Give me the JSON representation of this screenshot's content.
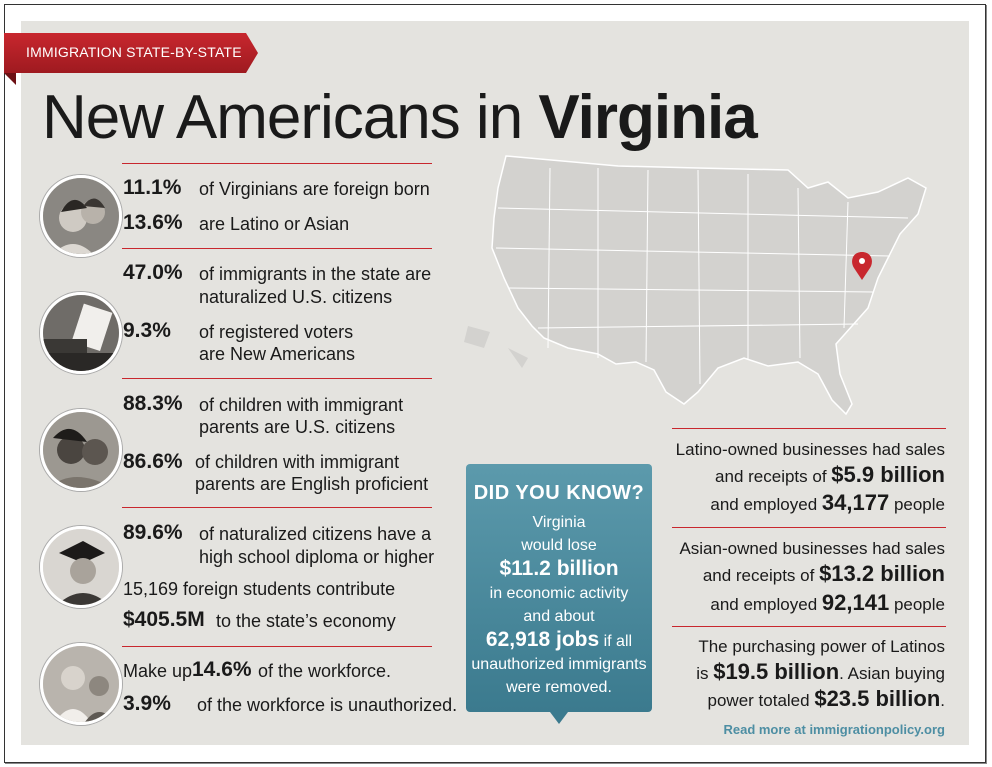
{
  "header": {
    "banner": "IMMIGRATION STATE-BY-STATE",
    "title_light": "New Americans in",
    "title_bold": "Virginia"
  },
  "stats": {
    "foreign_born_pct": "11.1%",
    "foreign_born_text": "of Virginians are foreign born",
    "latino_asian_pct": "13.6%",
    "latino_asian_text": "are Latino or Asian",
    "naturalized_pct": "47.0%",
    "naturalized_text_1": "of immigrants in the state are",
    "naturalized_text_2": "naturalized U.S. citizens",
    "voters_pct": "9.3%",
    "voters_text_1": "of registered voters",
    "voters_text_2": "are New Americans",
    "children_citizens_pct": "88.3%",
    "children_citizens_text_1": "of children with immigrant",
    "children_citizens_text_2": "parents are U.S. citizens",
    "children_english_pct": "86.6%",
    "children_english_text_1": "of children with immigrant",
    "children_english_text_2": "parents are English proficient",
    "diploma_pct": "89.6%",
    "diploma_text_1": "of naturalized citizens have a",
    "diploma_text_2": "high school diploma or higher",
    "students_text": "15,169 foreign students contribute",
    "students_amount": "$405.5M",
    "students_suffix": "to the state’s economy",
    "workforce_prefix": "Make up",
    "workforce_pct": "14.6%",
    "workforce_suffix": "of the workforce.",
    "unauthorized_pct": "3.9%",
    "unauthorized_text": "of the workforce is unauthorized."
  },
  "did_you_know": {
    "heading": "DID YOU KNOW?",
    "line1": "Virginia",
    "line2": "would lose",
    "amount": "$11.2 billion",
    "line3": "in economic activity",
    "line4": "and about",
    "jobs": "62,918 jobs",
    "jobs_suffix": "if all",
    "line5": "unauthorized immigrants",
    "line6": "were removed."
  },
  "business": {
    "latino_1": "Latino-owned businesses had sales",
    "latino_2": "and receipts of",
    "latino_amount": "$5.9 billion",
    "latino_3": "and employed",
    "latino_employees": "34,177",
    "latino_4": "people",
    "asian_1": "Asian-owned businesses had sales",
    "asian_2": "and receipts of",
    "asian_amount": "$13.2 billion",
    "asian_3": "and employed",
    "asian_employees": "92,141",
    "asian_4": "people",
    "power_1": "The purchasing power of Latinos",
    "power_2": "is",
    "latino_power": "$19.5 billion",
    "power_3": ". Asian buying",
    "power_4": "power totaled",
    "asian_power": "$23.5 billion",
    "power_5": "."
  },
  "footer": {
    "read_more": "Read more at immigrationpolicy.org"
  },
  "colors": {
    "accent_red": "#c8272e",
    "teal": "#4a8a9c",
    "panel": "#e4e3df"
  }
}
